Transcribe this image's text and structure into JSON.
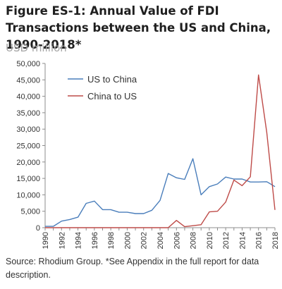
{
  "figure": {
    "title": "Figure ES-1: Annual Value of FDI Transactions between the US and China, 1990-2018*",
    "unit_label": "USD million",
    "source_note": "Source: Rhodium Group. *See Appendix in the full report for data description."
  },
  "chart_data": {
    "type": "line",
    "title": "Figure ES-1: Annual Value of FDI Transactions between the US and China, 1990-2018*",
    "ylabel": "USD million",
    "xlabel": "",
    "ylim": [
      0,
      50000
    ],
    "yticks": [
      "0",
      "5,000",
      "10,000",
      "15,000",
      "20,000",
      "25,000",
      "30,000",
      "35,000",
      "40,000",
      "45,000",
      "50,000"
    ],
    "xtick_labels": [
      "1990",
      "1992",
      "1994",
      "1996",
      "1998",
      "2000",
      "2002",
      "2004",
      "2006",
      "2008",
      "2010",
      "2012",
      "2014",
      "2016",
      "2018"
    ],
    "x": [
      1990,
      1991,
      1992,
      1993,
      1994,
      1995,
      1996,
      1997,
      1998,
      1999,
      2000,
      2001,
      2002,
      2003,
      2004,
      2005,
      2006,
      2007,
      2008,
      2009,
      2010,
      2011,
      2012,
      2013,
      2014,
      2015,
      2016,
      2017,
      2018
    ],
    "grid": false,
    "legend_position": "top-left inside plot",
    "series": [
      {
        "name": "US to China",
        "color": "#4a7ebb",
        "values": [
          400,
          400,
          2000,
          2500,
          3200,
          7400,
          8100,
          5500,
          5500,
          4700,
          4700,
          4300,
          4300,
          5300,
          8300,
          16500,
          15200,
          14700,
          21000,
          10000,
          12500,
          13300,
          15400,
          14800,
          14800,
          13900,
          13900,
          14000,
          12500
        ]
      },
      {
        "name": "China to US",
        "color": "#be4b48",
        "values": [
          0,
          0,
          0,
          0,
          0,
          0,
          0,
          0,
          0,
          0,
          0,
          0,
          0,
          0,
          0,
          0,
          2200,
          300,
          600,
          900,
          4800,
          5000,
          7800,
          14500,
          12800,
          15500,
          46500,
          29000,
          5400
        ]
      }
    ]
  }
}
